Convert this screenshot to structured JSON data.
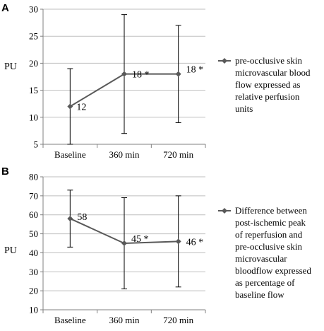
{
  "chart_data": [
    {
      "panel": "A",
      "type": "line",
      "categories": [
        "Baseline",
        "360 min",
        "720 min"
      ],
      "series": [
        {
          "name": "pre-occlusive skin microvascular blood flow expressed as relative perfusion units",
          "values": [
            12,
            18,
            18
          ],
          "error_low": [
            5,
            7,
            9
          ],
          "error_high": [
            19,
            29,
            27
          ],
          "data_labels": [
            "12",
            "18 *",
            "18 *"
          ]
        }
      ],
      "ylabel": "PU",
      "ylim": [
        5,
        30
      ],
      "yticks": [
        5,
        10,
        15,
        20,
        25,
        30
      ],
      "grid": true,
      "legend_lines": [
        "pre-occlusive skin",
        "microvascular blood",
        "flow expressed as",
        "relative perfusion",
        "units"
      ],
      "legend_position": "right",
      "line_color": "#595959"
    },
    {
      "panel": "B",
      "type": "line",
      "categories": [
        "Baseline",
        "360 min",
        "720 min"
      ],
      "series": [
        {
          "name": "Difference between post-ischemic peak of reperfusion and pre-occlusive skin microvascular bloodflow expressed as percentage of baseline flow",
          "values": [
            58,
            45,
            46
          ],
          "error_low": [
            43,
            21,
            22
          ],
          "error_high": [
            73,
            69,
            70
          ],
          "data_labels": [
            "58",
            "45 *",
            "46 *"
          ]
        }
      ],
      "ylabel": "PU",
      "ylim": [
        10,
        80
      ],
      "yticks": [
        10,
        20,
        30,
        40,
        50,
        60,
        70,
        80
      ],
      "grid": true,
      "legend_lines": [
        "Difference between",
        "post-ischemic peak",
        "of reperfusion and",
        "pre-occlusive skin",
        "microvascular",
        "bloodflow expressed",
        "as percentage of",
        "baseline flow"
      ],
      "legend_position": "right",
      "line_color": "#595959"
    }
  ]
}
